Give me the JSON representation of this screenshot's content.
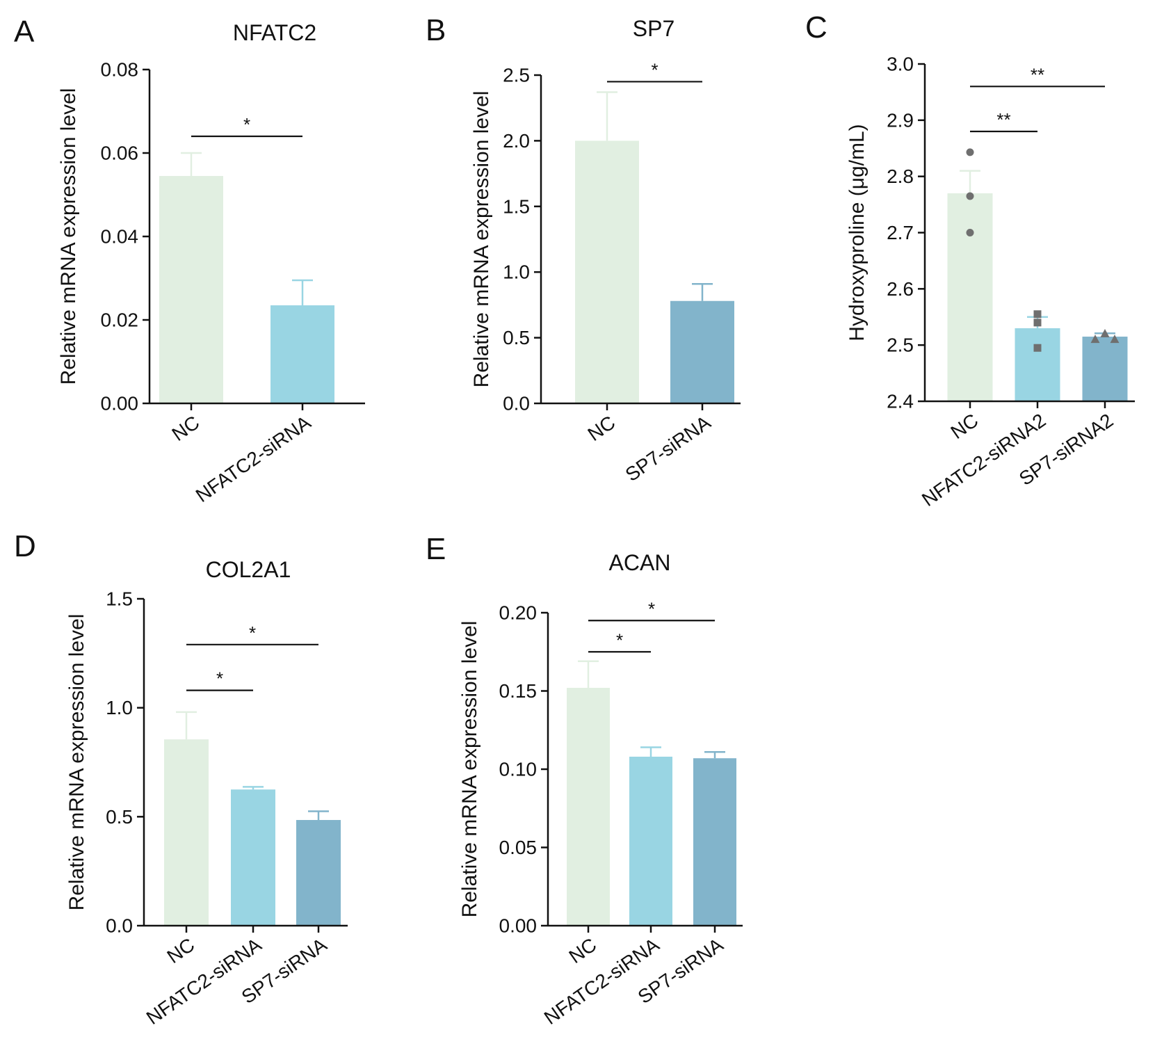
{
  "colors": {
    "NC": "#e1efe1",
    "NFATC2": "#99d5e3",
    "SP7": "#82b4cb",
    "axis": "#111111",
    "points": "#6f6f6f"
  },
  "chart_data": [
    {
      "panel": "A",
      "type": "bar",
      "title": "NFATC2",
      "ylabel": "Relative mRNA expression level",
      "ylim": [
        0,
        0.08
      ],
      "yticks": [
        "0.00",
        "0.02",
        "0.04",
        "0.06",
        "0.08"
      ],
      "categories": [
        "NC",
        "NFATC2-siRNA"
      ],
      "values": [
        0.0545,
        0.0235
      ],
      "errors": [
        0.0055,
        0.006
      ],
      "bar_colors": [
        "NC",
        "NFATC2"
      ],
      "significance": [
        {
          "from": 0,
          "to": 1,
          "label": "*",
          "y": 0.064
        }
      ]
    },
    {
      "panel": "B",
      "type": "bar",
      "title": "SP7",
      "ylabel": "Relative mRNA expression level",
      "ylim": [
        0,
        2.5
      ],
      "yticks": [
        "0.0",
        "0.5",
        "1.0",
        "1.5",
        "2.0",
        "2.5"
      ],
      "categories": [
        "NC",
        "SP7-siRNA"
      ],
      "values": [
        2.0,
        0.78
      ],
      "errors": [
        0.37,
        0.13
      ],
      "bar_colors": [
        "NC",
        "SP7"
      ],
      "significance": [
        {
          "from": 0,
          "to": 1,
          "label": "*",
          "y": 2.45
        }
      ]
    },
    {
      "panel": "C",
      "type": "bar",
      "title": "",
      "ylabel": "Hydroxyproline (μg/mL)",
      "ylim": [
        2.4,
        3.0
      ],
      "yticks": [
        "2.4",
        "2.5",
        "2.6",
        "2.7",
        "2.8",
        "2.9",
        "3.0"
      ],
      "categories": [
        "NC",
        "NFATC2-siRNA2",
        "SP7-siRNA2"
      ],
      "values": [
        2.77,
        2.53,
        2.515
      ],
      "errors": [
        0.04,
        0.02,
        0.006
      ],
      "bar_colors": [
        "NC",
        "NFATC2",
        "SP7"
      ],
      "points": [
        {
          "category": 0,
          "shape": "circle",
          "values": [
            2.843,
            2.765,
            2.7
          ]
        },
        {
          "category": 1,
          "shape": "square",
          "values": [
            2.555,
            2.54,
            2.495
          ]
        },
        {
          "category": 2,
          "shape": "triangle",
          "values": [
            2.52,
            2.51,
            2.51
          ]
        }
      ],
      "significance": [
        {
          "from": 0,
          "to": 1,
          "label": "**",
          "y": 2.88
        },
        {
          "from": 0,
          "to": 2,
          "label": "**",
          "y": 2.96
        }
      ]
    },
    {
      "panel": "D",
      "type": "bar",
      "title": "COL2A1",
      "ylabel": "Relative mRNA expression level",
      "ylim": [
        0,
        1.5
      ],
      "yticks": [
        "0.0",
        "0.5",
        "1.0",
        "1.5"
      ],
      "categories": [
        "NC",
        "NFATC2-siRNA",
        "SP7-siRNA"
      ],
      "values": [
        0.855,
        0.625,
        0.485
      ],
      "errors": [
        0.125,
        0.012,
        0.04
      ],
      "bar_colors": [
        "NC",
        "NFATC2",
        "SP7"
      ],
      "significance": [
        {
          "from": 0,
          "to": 1,
          "label": "*",
          "y": 1.08
        },
        {
          "from": 0,
          "to": 2,
          "label": "*",
          "y": 1.29
        }
      ]
    },
    {
      "panel": "E",
      "type": "bar",
      "title": "ACAN",
      "ylabel": "Relative mRNA expression level",
      "ylim": [
        0,
        0.2
      ],
      "yticks": [
        "0.00",
        "0.05",
        "0.10",
        "0.15",
        "0.20"
      ],
      "categories": [
        "NC",
        "NFATC2-siRNA",
        "SP7-siRNA"
      ],
      "values": [
        0.152,
        0.108,
        0.107
      ],
      "errors": [
        0.017,
        0.006,
        0.004
      ],
      "bar_colors": [
        "NC",
        "NFATC2",
        "SP7"
      ],
      "significance": [
        {
          "from": 0,
          "to": 1,
          "label": "*",
          "y": 0.175
        },
        {
          "from": 0,
          "to": 2,
          "label": "*",
          "y": 0.195
        }
      ]
    }
  ]
}
